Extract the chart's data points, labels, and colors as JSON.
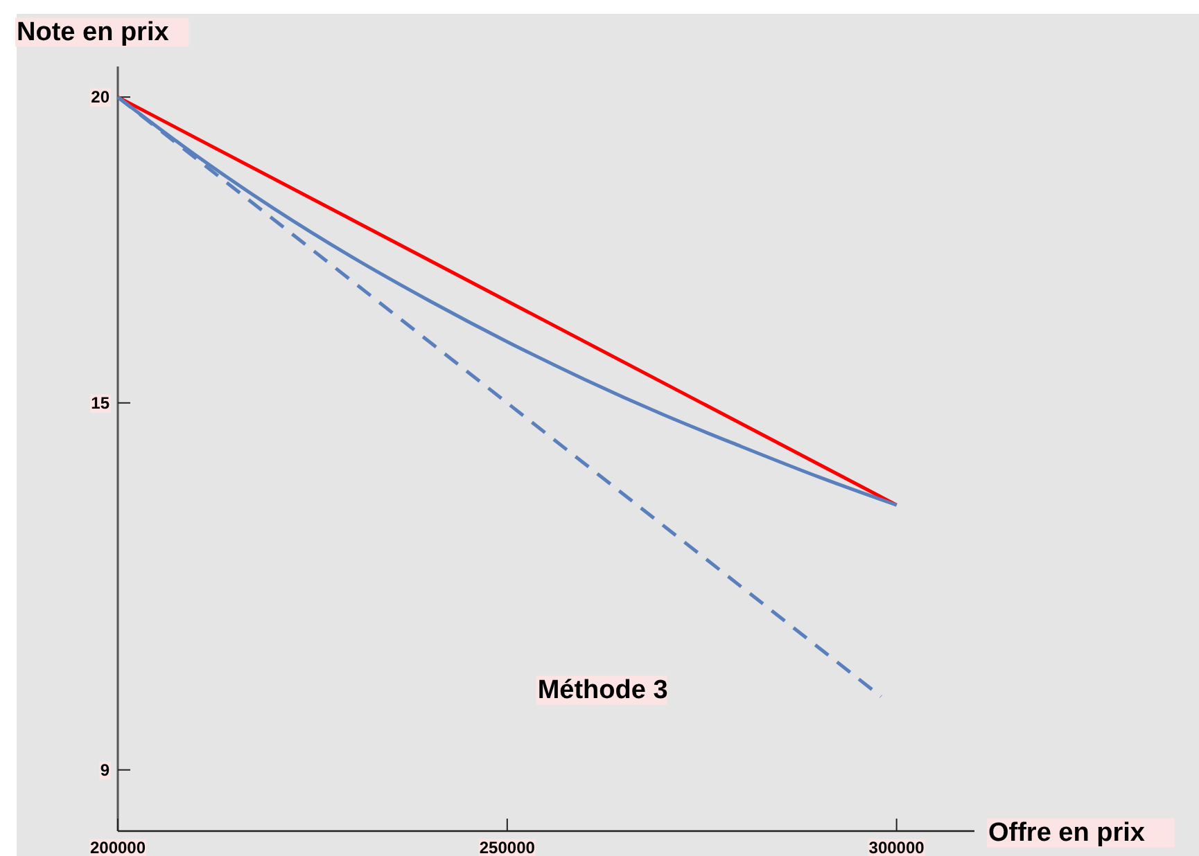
{
  "chart_data": {
    "type": "line",
    "xlabel": "Offre en prix",
    "ylabel": "Note en prix",
    "xlim": [
      200000,
      310000
    ],
    "ylim": [
      8,
      20.5
    ],
    "xticks": [
      200000,
      250000,
      300000
    ],
    "yticks": [
      20,
      15,
      9
    ],
    "series": [
      {
        "color": "#ff0000",
        "x": [
          200000,
          300000
        ],
        "values": [
          20,
          13.33
        ]
      },
      {
        "color": "#5a7fbd",
        "x": [
          200000,
          210000,
          220000,
          230000,
          240000,
          250000,
          260000,
          270000,
          280000,
          290000,
          300000
        ],
        "values": [
          20,
          19.05,
          18.18,
          17.39,
          16.67,
          16,
          15.38,
          14.81,
          14.29,
          13.79,
          13.33
        ]
      },
      {
        "color": "#5a7fbd",
        "line_style": "dashed",
        "x": [
          200000,
          298000
        ],
        "values": [
          20,
          10.2
        ]
      }
    ],
    "annotations": [
      "Méthode 3"
    ]
  }
}
